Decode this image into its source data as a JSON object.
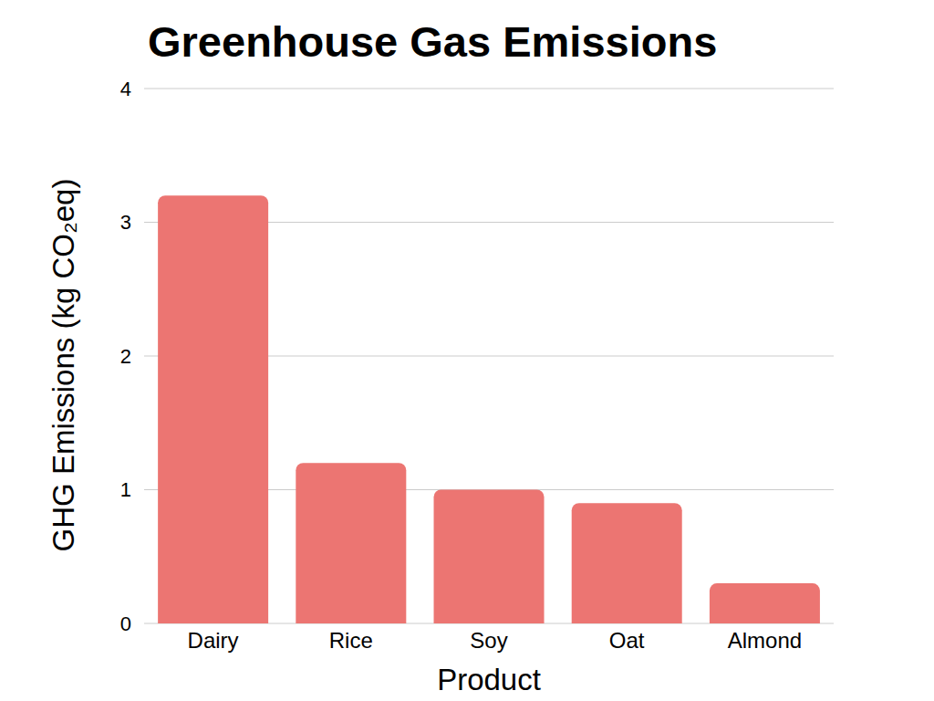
{
  "chart_data": {
    "type": "bar",
    "title": "Greenhouse Gas Emissions",
    "x_label": "Product",
    "y_label": "GHG Emissions (kg CO₂eq)",
    "categories": [
      "Dairy",
      "Rice",
      "Soy",
      "Oat",
      "Almond"
    ],
    "values": [
      3.2,
      1.2,
      1.0,
      0.9,
      0.3
    ],
    "color": "#ec7572",
    "ylim": [
      0,
      4
    ],
    "yticks": [
      0,
      1,
      2,
      3,
      4
    ],
    "grid": true
  }
}
